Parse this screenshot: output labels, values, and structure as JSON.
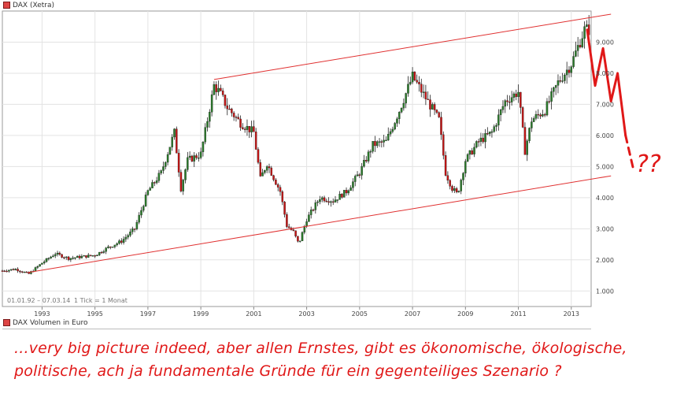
{
  "chart_data": {
    "type": "candlestick",
    "title": "DAX (Xetra)",
    "volume_title": "DAX Volumen in Euro",
    "info_label": "01.01.92 – 07.03.14",
    "tick_label": "1 Tick = 1 Monat",
    "x_ticks": [
      "1993",
      "1995",
      "1997",
      "1999",
      "2001",
      "2003",
      "2005",
      "2007",
      "2009",
      "2011",
      "2013"
    ],
    "y_ticks": [
      "1.000",
      "2.000",
      "3.000",
      "4.000",
      "5.000",
      "6.000",
      "7.000",
      "8.000",
      "9.000"
    ],
    "ylim": [
      500,
      10000
    ],
    "xlim": [
      1992.0,
      2014.25
    ],
    "grid": true,
    "series": [
      {
        "name": "DAX",
        "x": [
          1992.0,
          1992.5,
          1993.0,
          1993.5,
          1994.0,
          1994.5,
          1995.0,
          1995.5,
          1996.0,
          1996.5,
          1997.0,
          1997.5,
          1998.0,
          1998.5,
          1998.75,
          1999.0,
          1999.5,
          2000.0,
          2000.2,
          2000.5,
          2001.0,
          2001.5,
          2001.75,
          2002.0,
          2002.5,
          2002.75,
          2003.0,
          2003.2,
          2003.5,
          2004.0,
          2004.5,
          2005.0,
          2005.5,
          2006.0,
          2006.5,
          2007.0,
          2007.5,
          2008.0,
          2008.5,
          2008.75,
          2009.0,
          2009.2,
          2009.5,
          2010.0,
          2010.5,
          2011.0,
          2011.5,
          2011.75,
          2012.0,
          2012.5,
          2013.0,
          2013.5,
          2014.0,
          2014.2
        ],
        "values": [
          1650,
          1700,
          1550,
          1900,
          2200,
          2050,
          2100,
          2150,
          2400,
          2600,
          3000,
          4200,
          4800,
          6100,
          4300,
          5200,
          5400,
          7600,
          7400,
          6900,
          6400,
          6100,
          4600,
          5100,
          4200,
          3100,
          2900,
          2500,
          3300,
          4000,
          3900,
          4200,
          4800,
          5700,
          5800,
          6800,
          7900,
          7200,
          6500,
          4800,
          4300,
          4100,
          5200,
          5800,
          6100,
          7100,
          7400,
          5500,
          6500,
          6800,
          7700,
          8300,
          9400,
          9400
        ]
      }
    ],
    "trend_lines": [
      {
        "name": "upper-channel",
        "start": [
          2000.0,
          7800
        ],
        "end": [
          2015.0,
          9900
        ]
      },
      {
        "name": "lower-channel",
        "start": [
          1993.0,
          1600
        ],
        "end": [
          2015.0,
          4700
        ]
      }
    ],
    "forecast": {
      "points": [
        [
          2014.1,
          9400
        ],
        [
          2014.4,
          7600
        ],
        [
          2014.7,
          8800
        ],
        [
          2015.0,
          7100
        ],
        [
          2015.25,
          8000
        ],
        [
          2015.55,
          6000
        ]
      ],
      "dashes_to": [
        2015.85,
        4900
      ],
      "label": "??"
    }
  },
  "caption": {
    "line1": "...very big picture indeed,  aber allen Ernstes, gibt es ökonomische, ökologische,",
    "line2": "politische, ach ja fundamentale Gründe für ein gegenteiliges Szenario ?"
  },
  "colors": {
    "up": "#2a7a2a",
    "down": "#c41414",
    "trend": "#e03030",
    "grid": "#e3e3e3",
    "axis": "#888888"
  }
}
